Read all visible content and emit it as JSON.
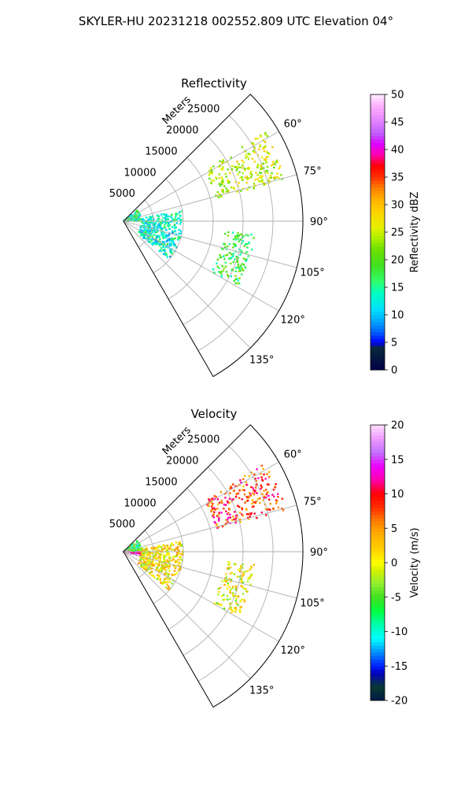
{
  "figure": {
    "suptitle": "SKYLER-HU  20231218  002552.809 UTC Elevation 04°"
  },
  "chart_data": [
    {
      "type": "ppi-sector",
      "title": "Reflectivity",
      "radial_axis_label": "Meters",
      "radial_ticks": [
        5000,
        10000,
        15000,
        20000,
        25000
      ],
      "r_max": 30000,
      "azimuth_range_deg": [
        45,
        150
      ],
      "azimuth_ticks": [
        "60°",
        "75°",
        "90°",
        "105°",
        "120°",
        "135°"
      ],
      "grid": true,
      "colorbar": {
        "label": "Reflectivity dBZ",
        "min": 0,
        "max": 50,
        "ticks": [
          0,
          5,
          10,
          15,
          20,
          25,
          30,
          35,
          40,
          45,
          50
        ]
      },
      "echo_regions": [
        {
          "az": [
            58,
            76
          ],
          "r": [
            16000,
            28000
          ],
          "value": 25
        },
        {
          "az": [
            52,
            90
          ],
          "r": [
            0,
            3000
          ],
          "value": 15
        },
        {
          "az": [
            80,
            130
          ],
          "r": [
            3000,
            10000
          ],
          "value": 13
        },
        {
          "az": [
            95,
            120
          ],
          "r": [
            17000,
            22000
          ],
          "value": 18
        }
      ]
    },
    {
      "type": "ppi-sector",
      "title": "Velocity",
      "radial_axis_label": "Meters",
      "radial_ticks": [
        5000,
        10000,
        15000,
        20000,
        25000
      ],
      "r_max": 30000,
      "azimuth_range_deg": [
        45,
        150
      ],
      "azimuth_ticks": [
        "60°",
        "75°",
        "90°",
        "105°",
        "120°",
        "135°"
      ],
      "grid": true,
      "colorbar": {
        "label": "Velocity (m/s)",
        "min": -20,
        "max": 20,
        "ticks": [
          -20,
          -15,
          -10,
          -5,
          0,
          5,
          10,
          15,
          20
        ]
      },
      "echo_regions": [
        {
          "az": [
            58,
            76
          ],
          "r": [
            16000,
            28000
          ],
          "value": 8
        },
        {
          "az": [
            52,
            90
          ],
          "r": [
            0,
            3000
          ],
          "value": -6
        },
        {
          "az": [
            90,
            105
          ],
          "r": [
            0,
            3000
          ],
          "value": 14
        },
        {
          "az": [
            80,
            130
          ],
          "r": [
            3000,
            10000
          ],
          "value": 1
        },
        {
          "az": [
            95,
            120
          ],
          "r": [
            17000,
            22000
          ],
          "value": 0
        }
      ]
    }
  ]
}
